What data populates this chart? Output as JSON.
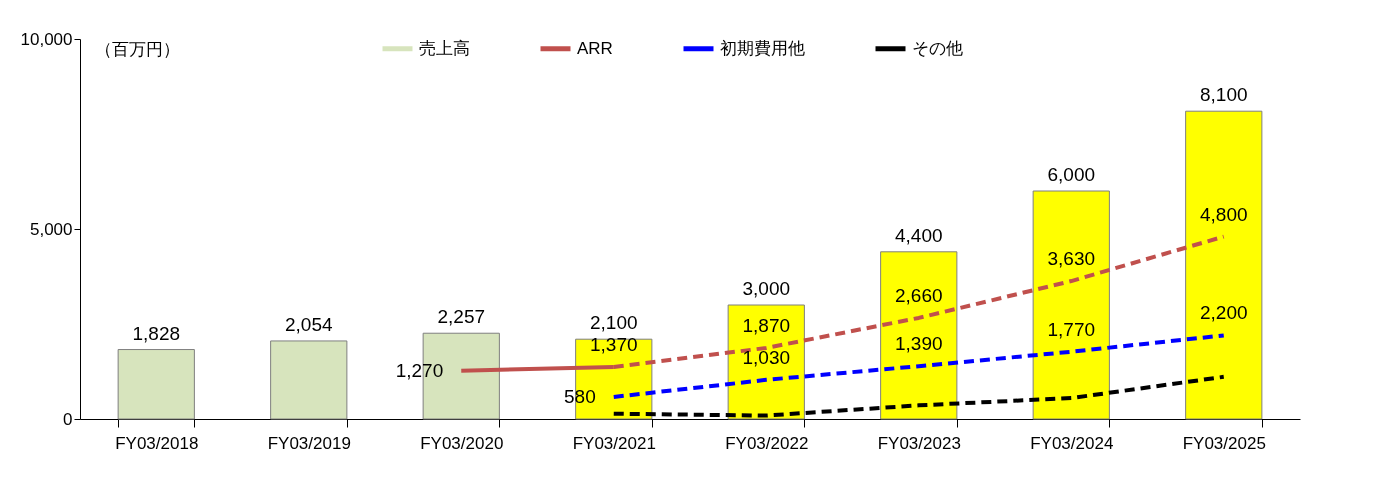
{
  "chart_data": {
    "type": "bar",
    "ylabel": "（百万円）",
    "categories": [
      "FY03/2018",
      "FY03/2019",
      "FY03/2020",
      "FY03/2021",
      "FY03/2022",
      "FY03/2023",
      "FY03/2024",
      "FY03/2025"
    ],
    "ylim": [
      0,
      10000
    ],
    "yticks": [
      0,
      {
        "value": 5000,
        "label": "5,000"
      },
      {
        "value": 10000,
        "label": "10,000"
      }
    ],
    "grid": false,
    "legend": "top",
    "series": [
      {
        "type": "bar",
        "name": "売上高",
        "color": "#d7e4bd",
        "colors": [
          "#d7e4bd",
          "#d7e4bd",
          "#d7e4bd",
          "#ffff00",
          "#ffff00",
          "#ffff00",
          "#ffff00",
          "#ffff00"
        ],
        "values": [
          1828,
          2054,
          2257,
          2100,
          3000,
          4400,
          6000,
          8100
        ],
        "value_labels": [
          "1,828",
          "2,054",
          "2,257",
          "2,100",
          "3,000",
          "4,400",
          "6,000",
          "8,100"
        ]
      },
      {
        "type": "line",
        "name": "ARR",
        "color": "#c0504d",
        "line_style": "solid",
        "values": [
          null,
          null,
          1270,
          1370,
          null,
          null,
          null,
          null
        ],
        "value_labels": [
          null,
          null,
          "1,270",
          "1,370",
          null,
          null,
          null,
          null
        ]
      },
      {
        "type": "line",
        "color": "#c0504d",
        "line_style": "dashed",
        "values": [
          null,
          null,
          null,
          1370,
          1870,
          2660,
          3630,
          4800
        ],
        "value_labels": [
          null,
          null,
          null,
          null,
          "1,870",
          "2,660",
          "3,630",
          "4,800"
        ]
      },
      {
        "type": "line",
        "name": "初期費用他",
        "color": "#0000ff",
        "line_style": "dashed",
        "values": [
          null,
          null,
          null,
          580,
          1030,
          1390,
          1770,
          2200
        ],
        "value_labels": [
          null,
          null,
          null,
          "580",
          "1,030",
          "1,390",
          "1,770",
          "2,200"
        ]
      },
      {
        "type": "line",
        "name": "その他",
        "color": "#000000",
        "line_style": "dashed",
        "values": [
          null,
          null,
          null,
          140,
          90,
          360,
          550,
          1110
        ]
      }
    ]
  }
}
